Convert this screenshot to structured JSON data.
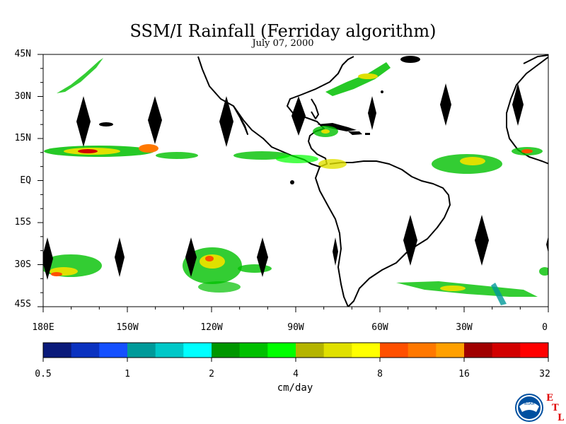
{
  "title": "SSM/I Rainfall (Ferriday algorithm)",
  "subtitle": "July 07, 2000",
  "lat_labels": [
    "45N",
    "30N",
    "15N",
    "EQ",
    "15S",
    "30S",
    "45S"
  ],
  "lon_labels": [
    "180E",
    "150W",
    "120W",
    "90W",
    "60W",
    "30W",
    "0"
  ],
  "colorbar": {
    "tick_labels": [
      "0.5",
      "1",
      "2",
      "4",
      "8",
      "16",
      "32"
    ],
    "units": "cm/day",
    "colors": [
      "#0a1a7a",
      "#0a32c0",
      "#1450ff",
      "#009a9a",
      "#00c8c8",
      "#00ffff",
      "#009600",
      "#00c000",
      "#00ff00",
      "#b4b400",
      "#e0e000",
      "#ffff00",
      "#ff5000",
      "#ff7800",
      "#ffa000",
      "#a00000",
      "#d20000",
      "#ff0000"
    ]
  },
  "logo": {
    "name": "NOAA",
    "lab_letters": [
      "E",
      "T",
      "L"
    ],
    "colors": {
      "blue": "#0050a0",
      "red": "#e00000"
    }
  },
  "map": {
    "lat_range": [
      -45,
      45
    ],
    "lon_range": [
      -180,
      0
    ],
    "land_color": "#000000",
    "background": "#ffffff"
  }
}
